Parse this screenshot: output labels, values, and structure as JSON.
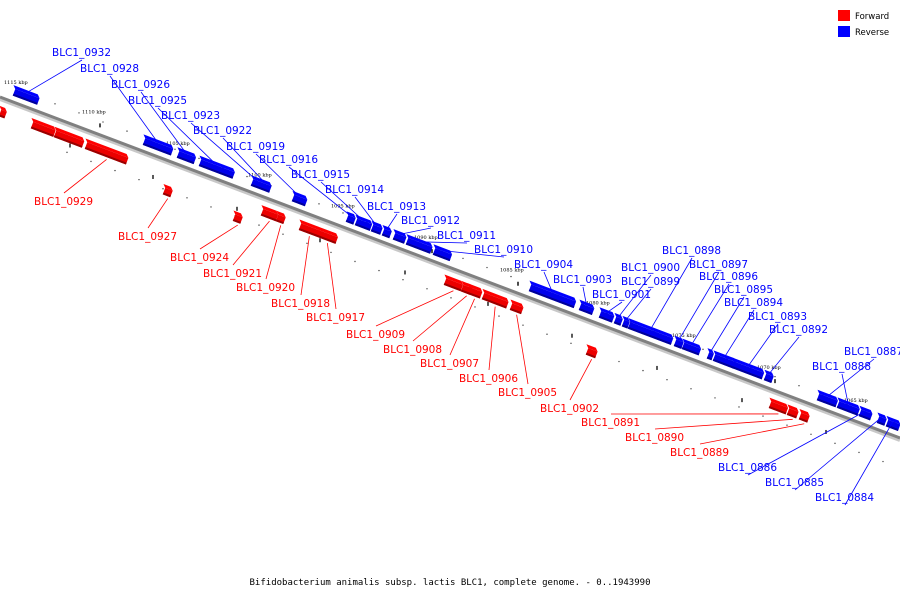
{
  "caption": "Bifidobacterium animalis subsp. lactis BLC1, complete genome. - 0..1943990",
  "legend": [
    {
      "label": "Forward",
      "color": "#ff0000"
    },
    {
      "label": "Reverse",
      "color": "#0000ff"
    }
  ],
  "colors": {
    "forward": "#ff0000",
    "reverse": "#0000ff",
    "backbone": "#808080"
  },
  "ticks": [
    "1115 kbp",
    "1110 kbp",
    "1105 kbp",
    "1100 kbp",
    "1095 kbp",
    "1090 kbp",
    "1085 kbp",
    "1080 kbp",
    "1075 kbp",
    "1070 kbp",
    "1065 kbp"
  ],
  "genes": [
    {
      "id": "BLC1_0932",
      "strand": "reverse"
    },
    {
      "id": "BLC1_0928",
      "strand": "reverse"
    },
    {
      "id": "BLC1_0926",
      "strand": "reverse"
    },
    {
      "id": "BLC1_0925",
      "strand": "reverse"
    },
    {
      "id": "BLC1_0923",
      "strand": "reverse"
    },
    {
      "id": "BLC1_0922",
      "strand": "reverse"
    },
    {
      "id": "BLC1_0919",
      "strand": "reverse"
    },
    {
      "id": "BLC1_0916",
      "strand": "reverse"
    },
    {
      "id": "BLC1_0915",
      "strand": "reverse"
    },
    {
      "id": "BLC1_0914",
      "strand": "reverse"
    },
    {
      "id": "BLC1_0913",
      "strand": "reverse"
    },
    {
      "id": "BLC1_0912",
      "strand": "reverse"
    },
    {
      "id": "BLC1_0911",
      "strand": "reverse"
    },
    {
      "id": "BLC1_0910",
      "strand": "reverse"
    },
    {
      "id": "BLC1_0904",
      "strand": "reverse"
    },
    {
      "id": "BLC1_0903",
      "strand": "reverse"
    },
    {
      "id": "BLC1_0901",
      "strand": "reverse"
    },
    {
      "id": "BLC1_0900",
      "strand": "reverse"
    },
    {
      "id": "BLC1_0899",
      "strand": "reverse"
    },
    {
      "id": "BLC1_0898",
      "strand": "reverse"
    },
    {
      "id": "BLC1_0897",
      "strand": "reverse"
    },
    {
      "id": "BLC1_0896",
      "strand": "reverse"
    },
    {
      "id": "BLC1_0895",
      "strand": "reverse"
    },
    {
      "id": "BLC1_0894",
      "strand": "reverse"
    },
    {
      "id": "BLC1_0893",
      "strand": "reverse"
    },
    {
      "id": "BLC1_0892",
      "strand": "reverse"
    },
    {
      "id": "BLC1_0887",
      "strand": "reverse"
    },
    {
      "id": "BLC1_0888",
      "strand": "reverse"
    },
    {
      "id": "BLC1_0886",
      "strand": "reverse"
    },
    {
      "id": "BLC1_0885",
      "strand": "reverse"
    },
    {
      "id": "BLC1_0884",
      "strand": "reverse"
    },
    {
      "id": "BLC1_0929",
      "strand": "forward"
    },
    {
      "id": "BLC1_0927",
      "strand": "forward"
    },
    {
      "id": "BLC1_0924",
      "strand": "forward"
    },
    {
      "id": "BLC1_0921",
      "strand": "forward"
    },
    {
      "id": "BLC1_0920",
      "strand": "forward"
    },
    {
      "id": "BLC1_0918",
      "strand": "forward"
    },
    {
      "id": "BLC1_0917",
      "strand": "forward"
    },
    {
      "id": "BLC1_0909",
      "strand": "forward"
    },
    {
      "id": "BLC1_0908",
      "strand": "forward"
    },
    {
      "id": "BLC1_0907",
      "strand": "forward"
    },
    {
      "id": "BLC1_0906",
      "strand": "forward"
    },
    {
      "id": "BLC1_0905",
      "strand": "forward"
    },
    {
      "id": "BLC1_0902",
      "strand": "forward"
    },
    {
      "id": "BLC1_0891",
      "strand": "forward"
    },
    {
      "id": "BLC1_0890",
      "strand": "forward"
    },
    {
      "id": "BLC1_0889",
      "strand": "forward"
    }
  ]
}
